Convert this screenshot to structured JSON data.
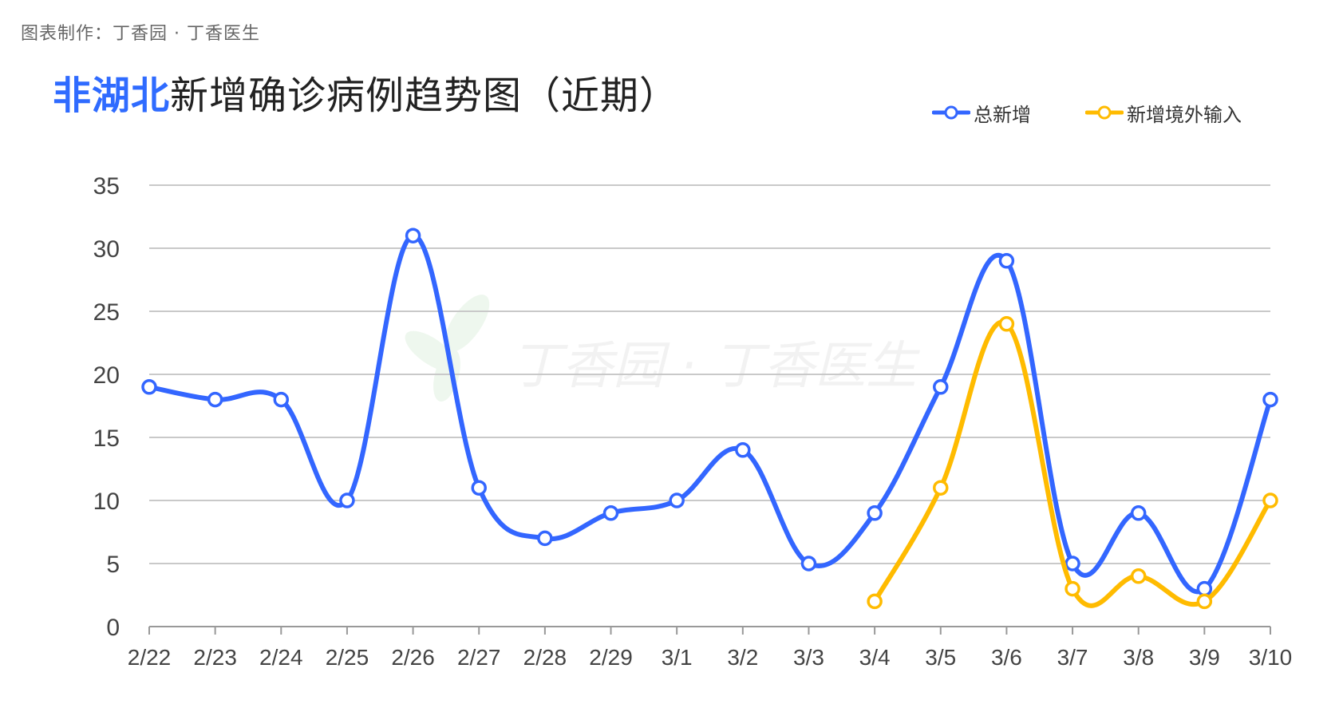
{
  "credit": "图表制作：丁香园 ·  丁香医生",
  "title": {
    "highlight": "非湖北",
    "rest": "新增确诊病例趋势图（近期）"
  },
  "watermark": "丁香园 · 丁香医生",
  "colors": {
    "series1": "#3366ff",
    "series2": "#ffbb00",
    "title_highlight": "#2f6bff",
    "grid": "#c9c9c9"
  },
  "chart_data": {
    "type": "line",
    "categories": [
      "2/22",
      "2/23",
      "2/24",
      "2/25",
      "2/26",
      "2/27",
      "2/28",
      "2/29",
      "3/1",
      "3/2",
      "3/3",
      "3/4",
      "3/5",
      "3/6",
      "3/7",
      "3/8",
      "3/9",
      "3/10"
    ],
    "y_ticks": [
      "0",
      "5",
      "10",
      "15",
      "20",
      "25",
      "30",
      "35"
    ],
    "ylim": [
      0,
      35
    ],
    "grid": true,
    "legend_position": "top-right",
    "series": [
      {
        "name": "总新增",
        "color": "#3366ff",
        "values": [
          19,
          18,
          18,
          10,
          31,
          11,
          7,
          9,
          10,
          14,
          5,
          9,
          19,
          29,
          5,
          9,
          3,
          18
        ]
      },
      {
        "name": "新增境外输入",
        "color": "#ffbb00",
        "values": [
          null,
          null,
          null,
          null,
          null,
          null,
          null,
          null,
          null,
          null,
          null,
          2,
          11,
          24,
          3,
          4,
          2,
          10
        ]
      }
    ]
  }
}
